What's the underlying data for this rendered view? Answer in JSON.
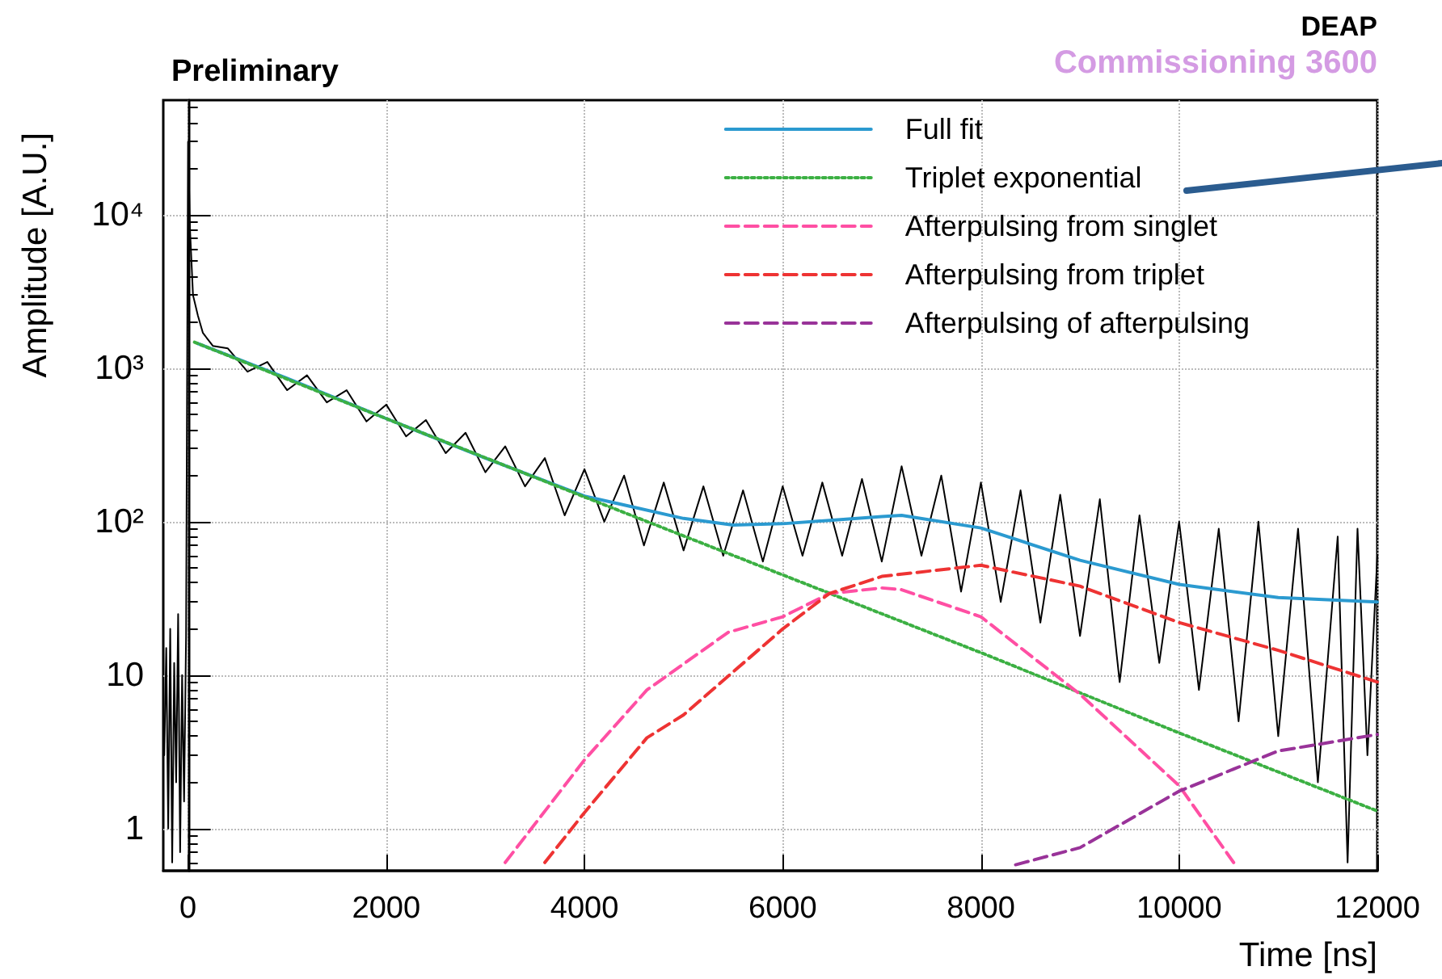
{
  "chart_data": {
    "type": "line",
    "title": "Preliminary",
    "xlabel": "Time [ns]",
    "ylabel": "Amplitude [A.U.]",
    "annotations": [
      "DEAP",
      "Commissioning 3600"
    ],
    "log": "y",
    "grid": true,
    "legend": "top right",
    "xlim": [
      -250,
      12000
    ],
    "xticks": [
      0,
      2000,
      4000,
      6000,
      8000,
      10000,
      12000
    ],
    "ylim": [
      0.53,
      56000
    ],
    "yticks": [
      1,
      10,
      {
        "value": 100,
        "label": "10²"
      },
      {
        "value": 1000,
        "label": "10³"
      },
      {
        "value": 10000,
        "label": "10⁴"
      }
    ],
    "series": [
      {
        "color": "#000000",
        "line_style": "solid",
        "x": [
          -240,
          -220,
          -200,
          -180,
          -160,
          -140,
          -120,
          -100,
          -80,
          -60,
          -40,
          -20,
          0,
          20,
          50,
          100,
          150,
          250,
          400,
          600,
          800,
          1000,
          1200,
          1400,
          1600,
          1800,
          2000,
          2200,
          2400,
          2600,
          2800,
          3000,
          3200,
          3400,
          3600,
          3800,
          4000,
          4200,
          4400,
          4600,
          4800,
          5000,
          5200,
          5400,
          5600,
          5800,
          6000,
          6200,
          6400,
          6600,
          6800,
          7000,
          7200,
          7400,
          7600,
          7800,
          8000,
          8200,
          8400,
          8600,
          8800,
          9000,
          9200,
          9400,
          9600,
          9800,
          10000,
          10200,
          10400,
          10600,
          10800,
          11000,
          11200,
          11400,
          11600,
          11700,
          11800,
          11900,
          12000
        ],
        "values": [
          3,
          15,
          1,
          20,
          0.6,
          12,
          2,
          25,
          0.7,
          10,
          1.5,
          18,
          30000,
          8000,
          3000,
          2200,
          1700,
          1400,
          1350,
          950,
          1100,
          720,
          900,
          600,
          720,
          450,
          580,
          360,
          460,
          280,
          380,
          210,
          310,
          170,
          260,
          110,
          220,
          100,
          200,
          70,
          180,
          65,
          170,
          60,
          160,
          55,
          170,
          60,
          180,
          60,
          190,
          55,
          230,
          60,
          200,
          35,
          180,
          30,
          160,
          22,
          150,
          18,
          140,
          9,
          110,
          12,
          100,
          8,
          90,
          5,
          100,
          4,
          90,
          2,
          80,
          0.6,
          90,
          3,
          60
        ]
      },
      {
        "name": "Full fit",
        "color": "#2b9ad0",
        "line_style": "solid",
        "x": [
          100,
          500,
          1000,
          2000,
          3000,
          4000,
          5000,
          5500,
          6000,
          7000,
          7200,
          8000,
          9000,
          10000,
          11000,
          12000
        ],
        "values": [
          1450,
          1150,
          860,
          470,
          260,
          147,
          105,
          95,
          97,
          108,
          110,
          91,
          56,
          39,
          32,
          30
        ]
      },
      {
        "name": "Triplet exponential",
        "color": "#3cb043",
        "line_style": "dotted",
        "x": [
          65,
          2000,
          4000,
          6000,
          8000,
          10000,
          12000
        ],
        "values": [
          1480,
          470,
          145,
          45,
          14,
          4.2,
          1.3
        ]
      },
      {
        "name": "Afterpulsing from singlet",
        "color": "#ff4fa3",
        "line_style": "dashed",
        "x": [
          3200,
          4000,
          4630,
          5450,
          6000,
          6470,
          7000,
          7200,
          8000,
          9000,
          10000,
          10550
        ],
        "values": [
          0.6,
          2.8,
          8,
          19,
          24,
          34,
          37,
          36,
          24,
          7.5,
          1.9,
          0.6
        ]
      },
      {
        "name": "Afterpulsing from triplet",
        "color": "#ee3333",
        "line_style": "dashed",
        "x": [
          3600,
          4000,
          4630,
          5000,
          6000,
          6470,
          7000,
          8000,
          9000,
          10000,
          11000,
          12000
        ],
        "values": [
          0.6,
          1.27,
          3.9,
          5.5,
          20,
          34,
          44,
          52,
          38,
          22,
          14.5,
          9
        ]
      },
      {
        "name": "Afterpulsing of afterpulsing",
        "color": "#993399",
        "line_style": "dashed",
        "x": [
          8350,
          9000,
          10000,
          11000,
          12000
        ],
        "values": [
          0.58,
          0.75,
          1.75,
          3.2,
          4.1
        ]
      }
    ]
  }
}
